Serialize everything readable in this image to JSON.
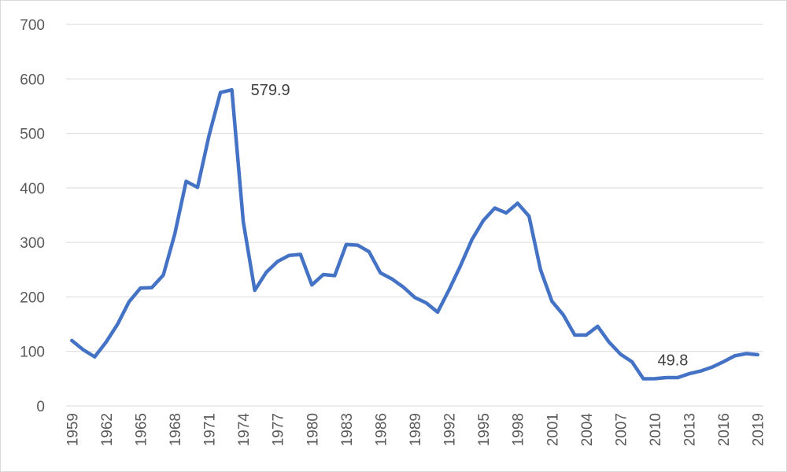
{
  "chart_data": {
    "type": "line",
    "title": "",
    "xlabel": "",
    "ylabel": "",
    "ylim": [
      0,
      700
    ],
    "yticks": [
      "0",
      "100",
      "200",
      "300",
      "400",
      "500",
      "600",
      "700"
    ],
    "xtick_labels": [
      "1959",
      "1962",
      "1965",
      "1968",
      "1971",
      "1974",
      "1977",
      "1980",
      "1983",
      "1986",
      "1989",
      "1992",
      "1995",
      "1998",
      "2001",
      "2004",
      "2007",
      "2010",
      "2013",
      "2016",
      "2019"
    ],
    "grid": "horizontal",
    "legend": "none",
    "series": [
      {
        "color": "#4472C4",
        "x": [
          1959,
          1960,
          1961,
          1962,
          1963,
          1964,
          1965,
          1966,
          1967,
          1968,
          1969,
          1970,
          1971,
          1972,
          1973,
          1974,
          1975,
          1976,
          1977,
          1978,
          1979,
          1980,
          1981,
          1982,
          1983,
          1984,
          1985,
          1986,
          1987,
          1988,
          1989,
          1990,
          1991,
          1992,
          1993,
          1994,
          1995,
          1996,
          1997,
          1998,
          1999,
          2000,
          2001,
          2002,
          2003,
          2004,
          2005,
          2006,
          2007,
          2008,
          2009,
          2010,
          2011,
          2012,
          2013,
          2014,
          2015,
          2016,
          2017,
          2018,
          2019
        ],
        "values": [
          120,
          103,
          90,
          117,
          150,
          191,
          216,
          217,
          240,
          315,
          412,
          401,
          496,
          575,
          579.9,
          338,
          212,
          245,
          265,
          276,
          278,
          222,
          241,
          239,
          296,
          295,
          283,
          244,
          233,
          218,
          199,
          189,
          172,
          213,
          257,
          305,
          340,
          363,
          354,
          372,
          348,
          250,
          192,
          167,
          130,
          130,
          146,
          117,
          95,
          81,
          49.8,
          50,
          52,
          52,
          59,
          64,
          71,
          81,
          92,
          96,
          94
        ]
      }
    ],
    "annotations": [
      {
        "text": "579.9",
        "x": 1973,
        "y": 579.9
      },
      {
        "text": "49.8",
        "x": 2009,
        "y": 49.8
      }
    ]
  }
}
